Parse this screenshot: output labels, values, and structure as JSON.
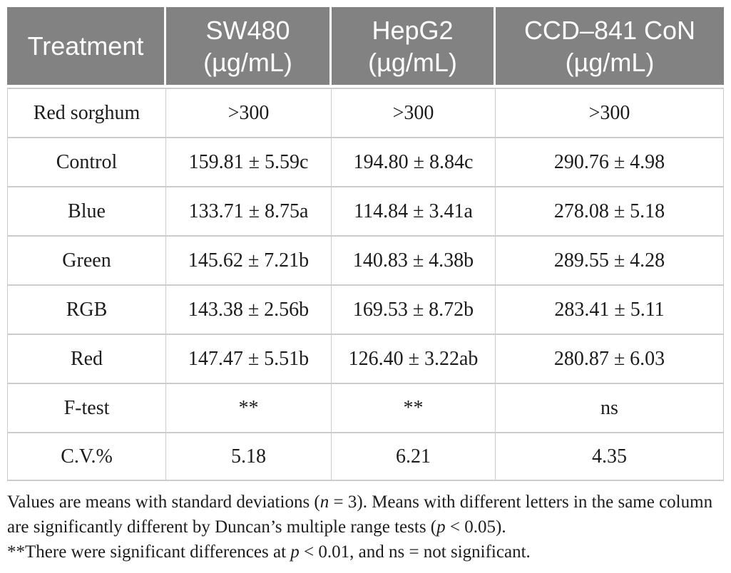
{
  "table": {
    "headers": [
      {
        "line1": "Treatment",
        "line2": ""
      },
      {
        "line1": "SW480",
        "line2": "(µg/mL)"
      },
      {
        "line1": "HepG2",
        "line2": "(µg/mL)"
      },
      {
        "line1": "CCD–841 CoN",
        "line2": "(µg/mL)"
      }
    ],
    "rows": [
      {
        "treatment": "Red sorghum",
        "sw480": ">300",
        "hepg2": ">300",
        "ccd": ">300"
      },
      {
        "treatment": "Control",
        "sw480": "159.81 ± 5.59c",
        "hepg2": "194.80 ± 8.84c",
        "ccd": "290.76 ± 4.98"
      },
      {
        "treatment": "Blue",
        "sw480": "133.71 ± 8.75a",
        "hepg2": "114.84 ± 3.41a",
        "ccd": "278.08 ± 5.18"
      },
      {
        "treatment": "Green",
        "sw480": "145.62 ± 7.21b",
        "hepg2": "140.83 ± 4.38b",
        "ccd": "289.55 ± 4.28"
      },
      {
        "treatment": "RGB",
        "sw480": "143.38 ± 2.56b",
        "hepg2": "169.53 ± 8.72b",
        "ccd": "283.41 ± 5.11"
      },
      {
        "treatment": "Red",
        "sw480": "147.47 ± 5.51b",
        "hepg2": "126.40 ± 3.22ab",
        "ccd": "280.87 ± 6.03"
      },
      {
        "treatment": "F-test",
        "sw480": "**",
        "hepg2": "**",
        "ccd": "ns"
      },
      {
        "treatment": "C.V.%",
        "sw480": "5.18",
        "hepg2": "6.21",
        "ccd": "4.35"
      }
    ]
  },
  "footnotes": {
    "p1": {
      "t1": "Values are means with standard deviations (",
      "i1": "n",
      "t2": " = 3). Means with different letters in the same column are significantly different by Duncan’s multiple range tests (",
      "i2": "p",
      "t3": " < 0.05)."
    },
    "p2": {
      "stars": "**",
      "t1": "There were significant differences at ",
      "i1": "p",
      "t2": " < 0.01, and ns = not significant."
    }
  },
  "colors": {
    "header_bg": "#828282",
    "header_text": "#ffffff",
    "body_text": "#1c1c1c",
    "border": "#cccccc"
  }
}
